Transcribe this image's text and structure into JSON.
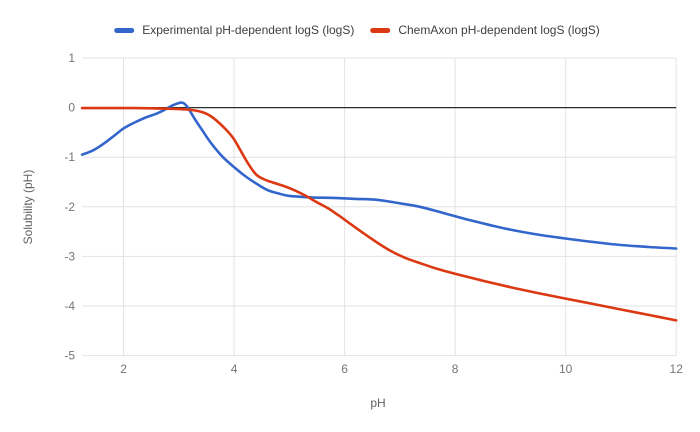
{
  "legend": {
    "items": [
      {
        "label": "Experimental pH-dependent logS (logS)",
        "color": "#3366cc"
      },
      {
        "label": "ChemAxon pH-dependent logS (logS)",
        "color": "#dc3912"
      }
    ]
  },
  "colors": {
    "series_experimental": "#3366cc",
    "series_chemaxon": "#dc3912",
    "gridline": "#e3e3e3",
    "zero_baseline": "#2b2b2b",
    "tick_label": "#757575",
    "axis_title": "#616161",
    "legend_text": "#3c4043",
    "background": "#ffffff"
  },
  "chart_data": {
    "type": "line",
    "title": "",
    "xlabel": "pH",
    "ylabel": "Solubility (pH)",
    "xlim": [
      1.25,
      12
    ],
    "ylim": [
      -5,
      1
    ],
    "x_ticks": [
      2,
      4,
      6,
      8,
      10,
      12
    ],
    "y_ticks": [
      1,
      0,
      -1,
      -2,
      -3,
      -4,
      -5
    ],
    "grid": true,
    "legend_position": "top",
    "series": [
      {
        "name": "Experimental pH-dependent logS (logS)",
        "color": "#3366cc",
        "points": [
          [
            1.25,
            -0.95
          ],
          [
            1.45,
            -0.86
          ],
          [
            1.65,
            -0.72
          ],
          [
            1.85,
            -0.55
          ],
          [
            2.0,
            -0.42
          ],
          [
            2.2,
            -0.3
          ],
          [
            2.4,
            -0.2
          ],
          [
            2.6,
            -0.12
          ],
          [
            2.75,
            -0.04
          ],
          [
            2.9,
            0.05
          ],
          [
            3.05,
            0.1
          ],
          [
            3.15,
            0.02
          ],
          [
            3.3,
            -0.25
          ],
          [
            3.45,
            -0.5
          ],
          [
            3.6,
            -0.74
          ],
          [
            3.8,
            -1.0
          ],
          [
            4.0,
            -1.2
          ],
          [
            4.2,
            -1.38
          ],
          [
            4.4,
            -1.53
          ],
          [
            4.6,
            -1.66
          ],
          [
            4.8,
            -1.73
          ],
          [
            5.0,
            -1.78
          ],
          [
            5.4,
            -1.81
          ],
          [
            5.8,
            -1.82
          ],
          [
            6.2,
            -1.84
          ],
          [
            6.6,
            -1.86
          ],
          [
            7.0,
            -1.93
          ],
          [
            7.4,
            -2.01
          ],
          [
            7.8,
            -2.13
          ],
          [
            8.2,
            -2.25
          ],
          [
            8.6,
            -2.36
          ],
          [
            9.0,
            -2.46
          ],
          [
            9.5,
            -2.56
          ],
          [
            10.0,
            -2.64
          ],
          [
            10.5,
            -2.71
          ],
          [
            11.0,
            -2.77
          ],
          [
            11.5,
            -2.81
          ],
          [
            12.0,
            -2.84
          ]
        ]
      },
      {
        "name": "ChemAxon pH-dependent logS (logS)",
        "color": "#dc3912",
        "points": [
          [
            1.25,
            -0.01
          ],
          [
            1.7,
            -0.01
          ],
          [
            2.2,
            -0.01
          ],
          [
            2.7,
            -0.02
          ],
          [
            3.0,
            -0.03
          ],
          [
            3.25,
            -0.05
          ],
          [
            3.45,
            -0.1
          ],
          [
            3.6,
            -0.19
          ],
          [
            3.75,
            -0.33
          ],
          [
            3.9,
            -0.5
          ],
          [
            4.0,
            -0.64
          ],
          [
            4.1,
            -0.83
          ],
          [
            4.25,
            -1.12
          ],
          [
            4.4,
            -1.35
          ],
          [
            4.55,
            -1.45
          ],
          [
            4.7,
            -1.51
          ],
          [
            4.9,
            -1.58
          ],
          [
            5.1,
            -1.67
          ],
          [
            5.3,
            -1.78
          ],
          [
            5.5,
            -1.91
          ],
          [
            5.7,
            -2.03
          ],
          [
            5.9,
            -2.18
          ],
          [
            6.1,
            -2.34
          ],
          [
            6.35,
            -2.54
          ],
          [
            6.6,
            -2.73
          ],
          [
            6.85,
            -2.9
          ],
          [
            7.1,
            -3.03
          ],
          [
            7.4,
            -3.15
          ],
          [
            7.7,
            -3.26
          ],
          [
            8.0,
            -3.35
          ],
          [
            8.5,
            -3.49
          ],
          [
            9.0,
            -3.62
          ],
          [
            9.5,
            -3.74
          ],
          [
            10.0,
            -3.85
          ],
          [
            10.5,
            -3.96
          ],
          [
            11.0,
            -4.07
          ],
          [
            11.5,
            -4.18
          ],
          [
            12.0,
            -4.29
          ]
        ]
      }
    ]
  }
}
